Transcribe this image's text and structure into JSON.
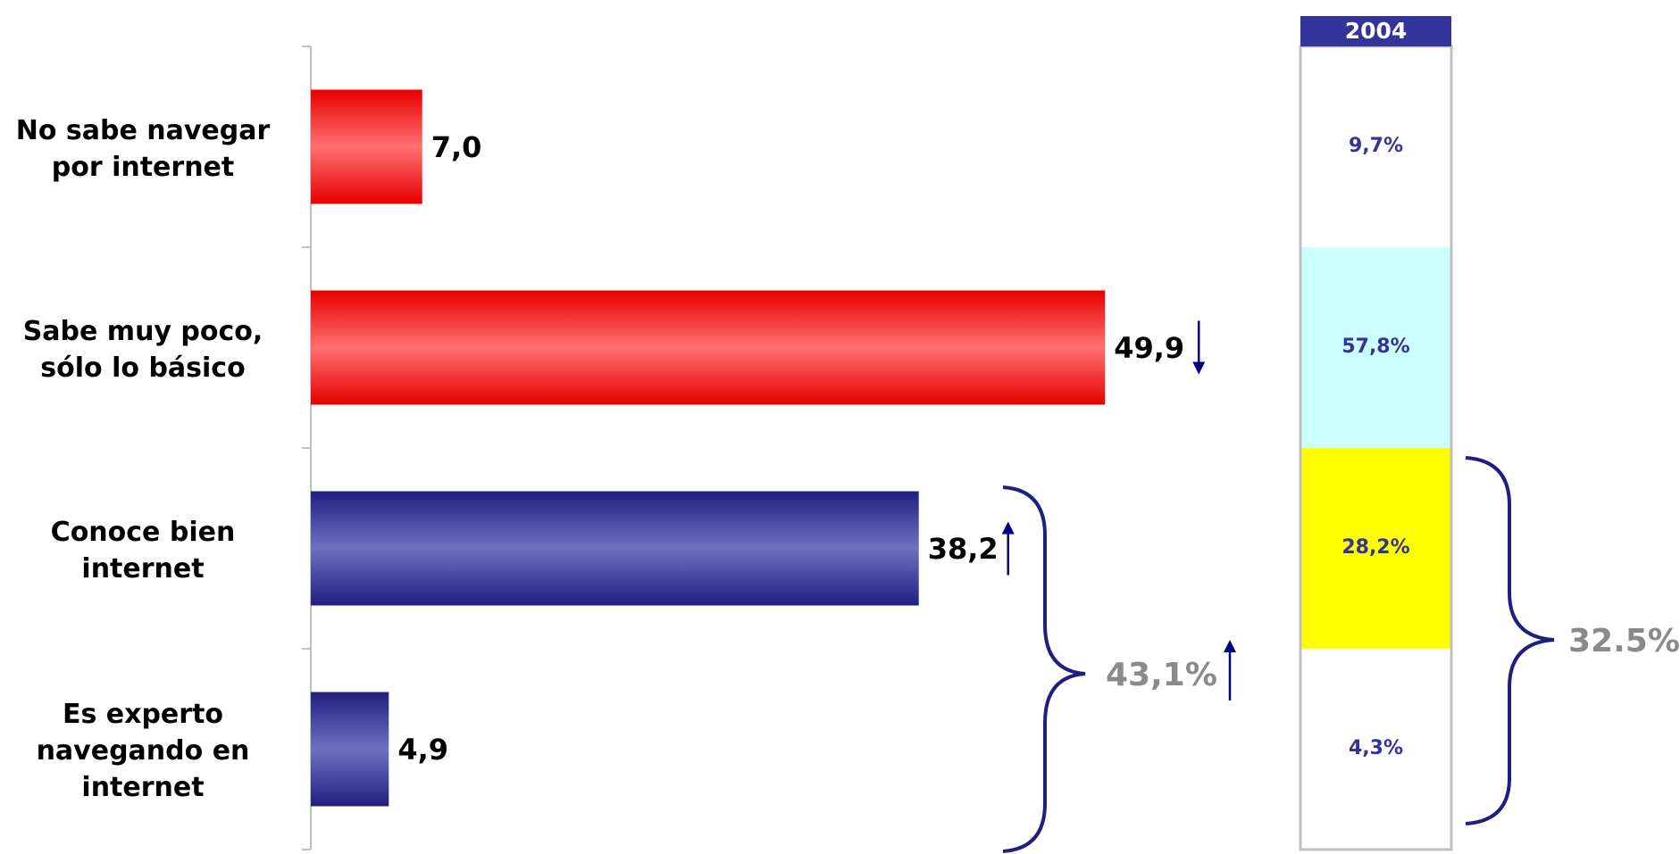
{
  "chart_data": [
    {
      "type": "bar",
      "orientation": "horizontal",
      "categories": [
        "No sabe navegar por internet",
        "Sabe muy poco, sólo lo básico",
        "Conoce bien internet",
        "Es experto navegando en internet"
      ],
      "category_lines": [
        [
          "No sabe navegar",
          "por internet"
        ],
        [
          "Sabe muy poco,",
          "sólo lo básico"
        ],
        [
          "Conoce bien",
          "internet"
        ],
        [
          "Es experto",
          "navegando en",
          "internet"
        ]
      ],
      "values": [
        7.0,
        49.9,
        38.2,
        4.9
      ],
      "value_labels": [
        "7,0",
        "49,9",
        "38,2",
        "4,9"
      ],
      "colors": [
        "#ff3333",
        "#ff3333",
        "#333399",
        "#333399"
      ],
      "trend": [
        null,
        "down",
        "up",
        null
      ],
      "xlim": [
        0,
        60
      ],
      "group_total": {
        "label": "43,1%",
        "trend": "up",
        "categories": [
          "Conoce bien internet",
          "Es experto navegando en internet"
        ]
      }
    },
    {
      "type": "stacked-bar",
      "title": "2004",
      "segments": [
        {
          "value": 9.7,
          "label": "9,7%",
          "color": "#ffffff"
        },
        {
          "value": 57.8,
          "label": "57,8%",
          "color": "#ccffff"
        },
        {
          "value": 28.2,
          "label": "28,2%",
          "color": "#ffff00"
        },
        {
          "value": 4.3,
          "label": "4,3%",
          "color": "#ffffff"
        }
      ],
      "group_total": {
        "label": "32.5%"
      }
    }
  ]
}
